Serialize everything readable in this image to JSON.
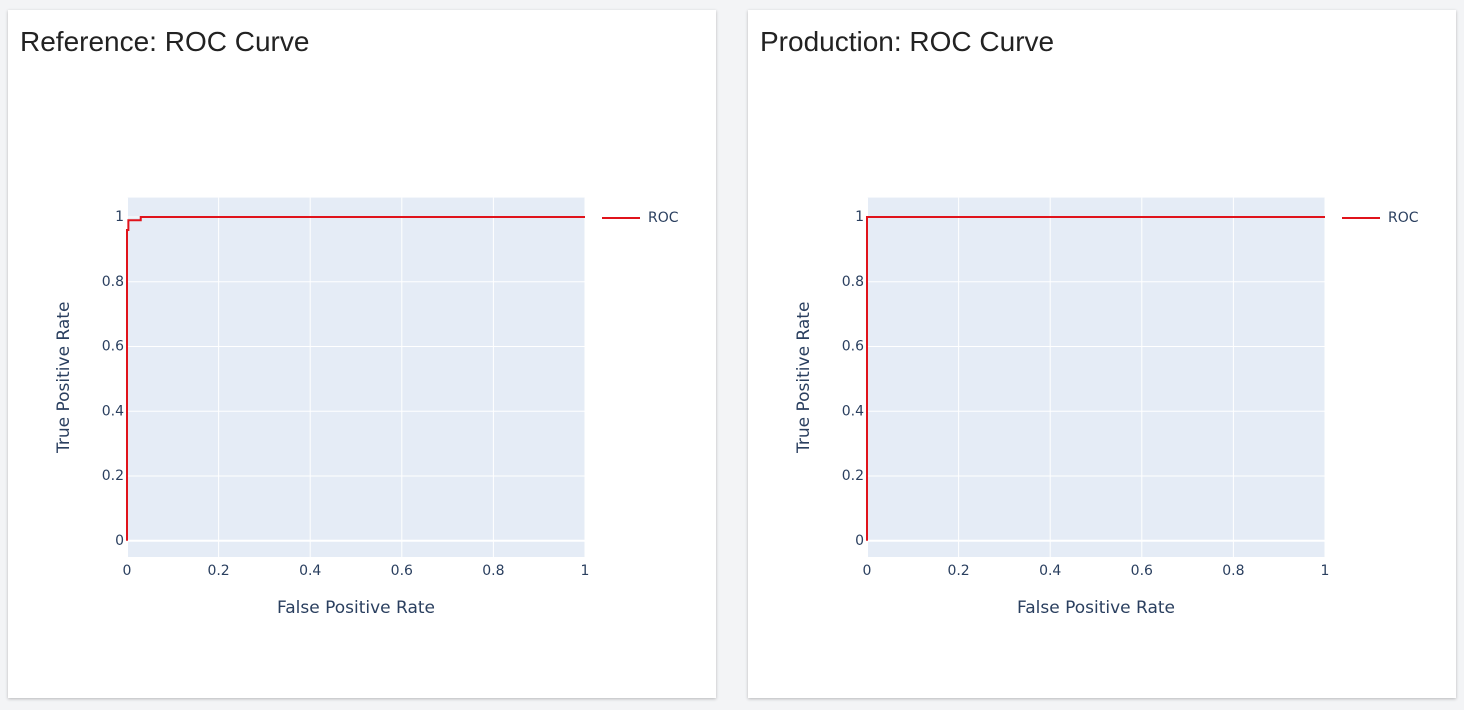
{
  "chart_data": [
    {
      "type": "line",
      "title": "Reference: ROC Curve",
      "x_label": "False Positive Rate",
      "y_label": "True Positive Rate",
      "x": [
        0,
        0,
        0.003,
        0.003,
        0.03,
        0.03,
        1
      ],
      "series": [
        {
          "name": "ROC",
          "color": "#e0131b",
          "values": [
            0,
            0.96,
            0.96,
            0.99,
            0.99,
            1,
            1
          ]
        }
      ],
      "xlim": [
        0,
        1
      ],
      "ylim": [
        -0.05,
        1.06
      ],
      "xticks": [
        0,
        0.2,
        0.4,
        0.6,
        0.8,
        1
      ],
      "yticks": [
        0,
        0.2,
        0.4,
        0.6,
        0.8,
        1
      ],
      "grid": true
    },
    {
      "type": "line",
      "title": "Production: ROC Curve",
      "x_label": "False Positive Rate",
      "y_label": "True Positive Rate",
      "x": [
        0,
        0,
        1
      ],
      "series": [
        {
          "name": "ROC",
          "color": "#e0131b",
          "values": [
            0,
            1,
            1
          ]
        }
      ],
      "xlim": [
        0,
        1
      ],
      "ylim": [
        -0.05,
        1.06
      ],
      "xticks": [
        0,
        0.2,
        0.4,
        0.6,
        0.8,
        1
      ],
      "yticks": [
        0,
        0.2,
        0.4,
        0.6,
        0.8,
        1
      ],
      "grid": true
    }
  ]
}
